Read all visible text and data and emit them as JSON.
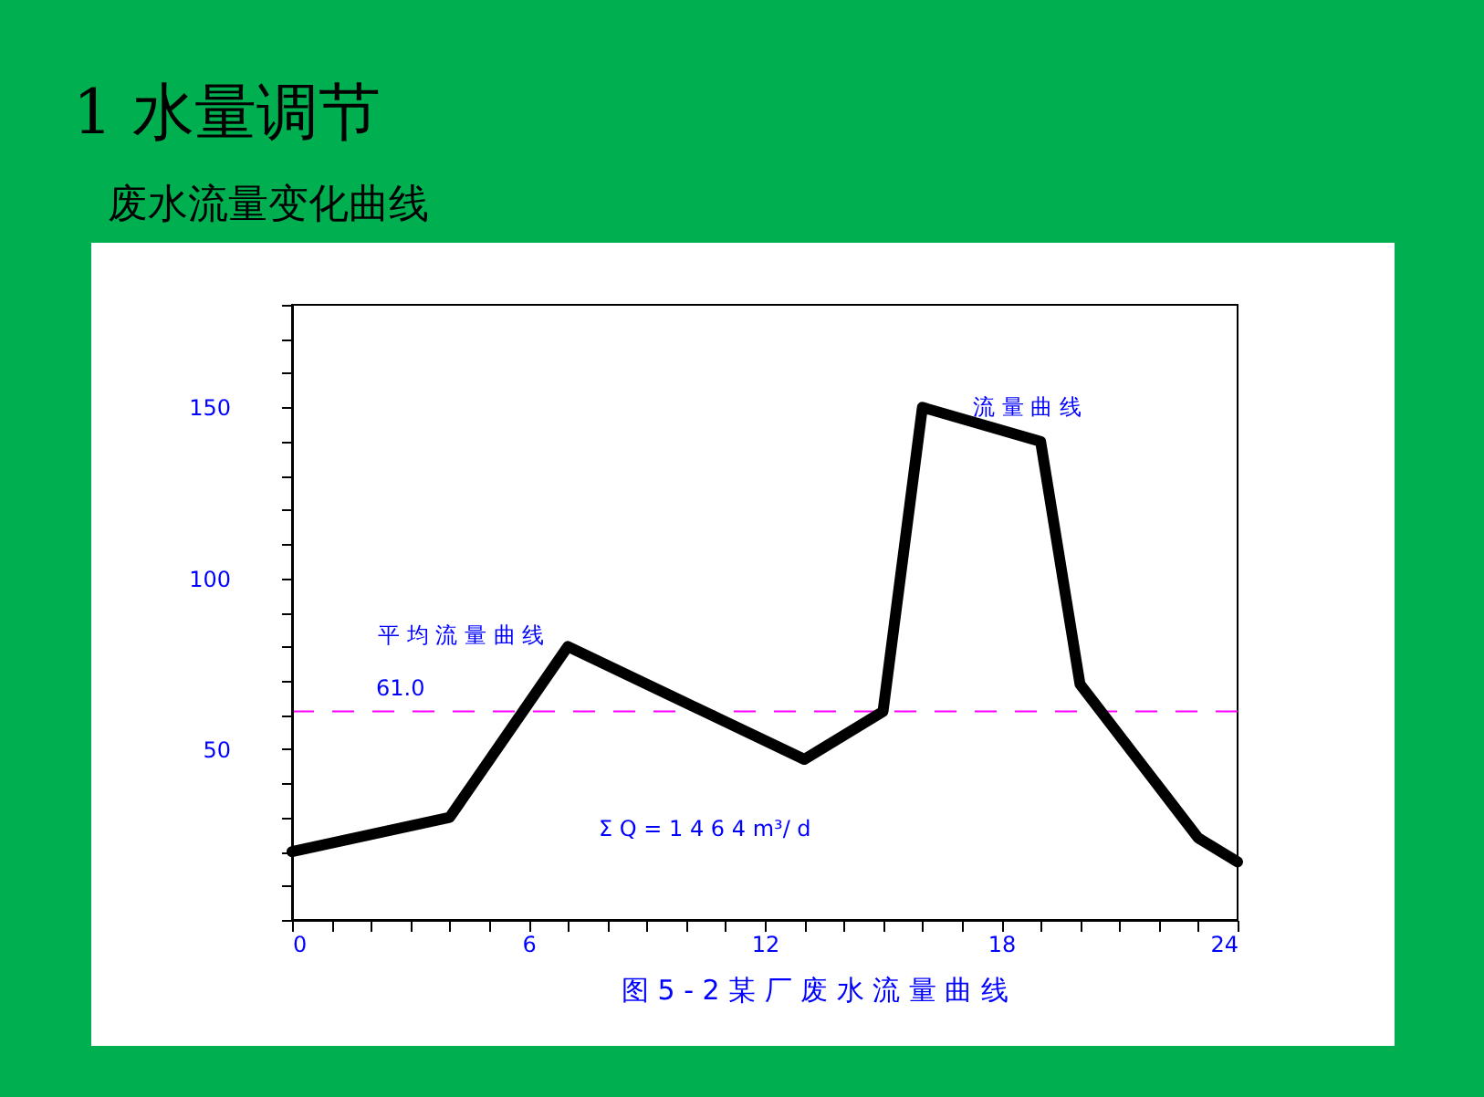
{
  "chart_data": {
    "type": "line",
    "title": "1  水量调节",
    "subtitle": "废水流量变化曲线",
    "xlabel": "图 5 - 2  某 厂 废 水 流 量 曲 线",
    "x": [
      0,
      4,
      7,
      13,
      15,
      16,
      19,
      20,
      23,
      24
    ],
    "series": [
      {
        "color": "#000000",
        "values": [
          20,
          30,
          80,
          47,
          61,
          150,
          140,
          69,
          24,
          17
        ]
      }
    ],
    "xlim": [
      0,
      24
    ],
    "xticks": [
      0,
      {
        "value": 1,
        "label": null
      },
      {
        "value": 2,
        "label": null
      },
      {
        "value": 3,
        "label": null
      },
      {
        "value": 4,
        "label": null
      },
      {
        "value": 5,
        "label": null
      },
      6,
      {
        "value": 7,
        "label": null
      },
      {
        "value": 8,
        "label": null
      },
      {
        "value": 9,
        "label": null
      },
      {
        "value": 10,
        "label": null
      },
      {
        "value": 11,
        "label": null
      },
      12,
      {
        "value": 13,
        "label": null
      },
      {
        "value": 14,
        "label": null
      },
      {
        "value": 15,
        "label": null
      },
      {
        "value": 16,
        "label": null
      },
      {
        "value": 17,
        "label": null
      },
      18,
      {
        "value": 19,
        "label": null
      },
      {
        "value": 20,
        "label": null
      },
      {
        "value": 21,
        "label": null
      },
      {
        "value": 22,
        "label": null
      },
      {
        "value": 23,
        "label": null
      },
      24
    ],
    "ylim": [
      0,
      180
    ],
    "yticks": [
      {
        "value": 0,
        "label": null
      },
      {
        "value": 10,
        "label": null
      },
      {
        "value": 20,
        "label": null
      },
      {
        "value": 30,
        "label": null
      },
      {
        "value": 40,
        "label": null
      },
      50,
      {
        "value": 60,
        "label": null
      },
      {
        "value": 70,
        "label": null
      },
      {
        "value": 80,
        "label": null
      },
      {
        "value": 90,
        "label": null
      },
      100,
      {
        "value": 110,
        "label": null
      },
      {
        "value": 120,
        "label": null
      },
      {
        "value": 130,
        "label": null
      },
      {
        "value": 140,
        "label": null
      },
      150,
      {
        "value": 160,
        "label": null
      },
      {
        "value": 170,
        "label": null
      },
      {
        "value": 180,
        "label": null
      }
    ],
    "ref_lines": [
      {
        "axis": "y",
        "value": 61.0,
        "label": "61.0",
        "color": "#ff00ff",
        "line_style": "dashed"
      }
    ],
    "annotations": [
      "平 均 流 量 曲 线",
      "流 量 曲 线",
      "Σ  Q = 1 4 6 4 m³/ d"
    ],
    "marker": "none",
    "line_style": "solid"
  }
}
